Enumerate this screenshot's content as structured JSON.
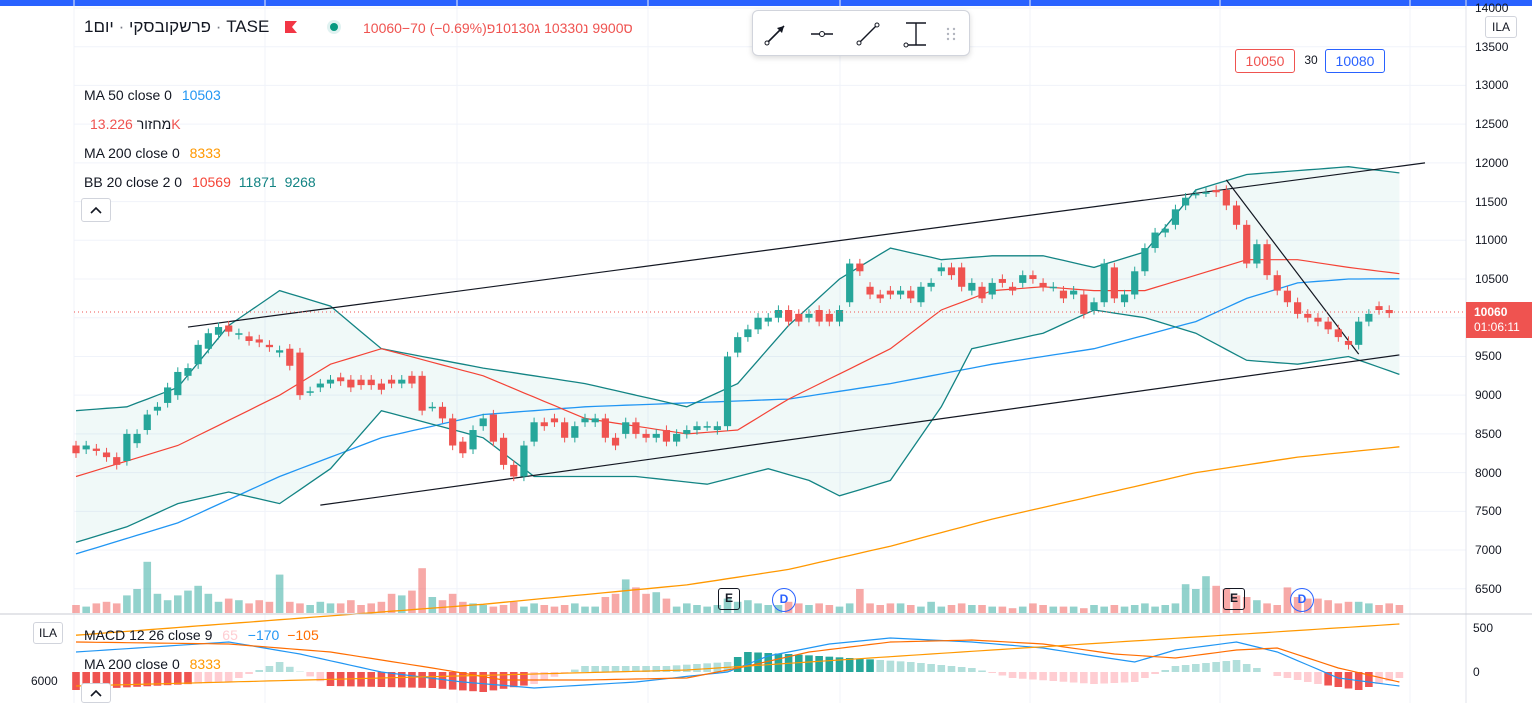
{
  "instrument": {
    "name": "פרשקובסקי",
    "separator": "·",
    "interval": "יום1",
    "exchange": "TASE",
    "ohlc_text": "10060−70 (−0.69%)ס9900 נ10330 ג10130פ"
  },
  "legends": {
    "ma50": {
      "label": "MA 50 close 0",
      "value": "10503"
    },
    "volume": {
      "label": "מחזור",
      "value": "13.226K"
    },
    "ma200": {
      "label": "MA 200 close 0",
      "value": "8333"
    },
    "bb": {
      "label": "BB 20 close 2 0",
      "v1": "10569",
      "v2": "11871",
      "v3": "9268"
    },
    "macd": {
      "label": "MACD 12 26 close 9",
      "v1": "65",
      "v2": "−170",
      "v3": "−105"
    },
    "ma200_lower": {
      "label": "MA 200 close 0",
      "value": "8333"
    }
  },
  "order_box": {
    "bid": "10050",
    "spread": "30",
    "ask": "10080"
  },
  "currency_badge": "ILA",
  "lower_currency_badge": "ILA",
  "lower_left_value": "6000",
  "last_price": {
    "price": "10060",
    "countdown": "01:06:11"
  },
  "events": [
    {
      "label": "E"
    },
    {
      "label": "D"
    },
    {
      "label": "E"
    },
    {
      "label": "D"
    }
  ],
  "toolbar": {
    "tools": [
      "arrow-tool-icon",
      "horizontal-ray-icon",
      "trend-line-icon",
      "price-range-icon",
      "drag-handle-icon"
    ]
  },
  "colors": {
    "up": "#26a69a",
    "down": "#ef5350",
    "ma50": "#2196f3",
    "ma200": "#ff9800",
    "bb_basis": "#f44336",
    "bb_band": "#138484"
  },
  "chart_data": {
    "type": "candlestick",
    "ylim": [
      6200,
      14000
    ],
    "y_ticks": [
      "14000",
      "13500",
      "13000",
      "12500",
      "12000",
      "11500",
      "11000",
      "10500",
      "10000",
      "9500",
      "9000",
      "8500",
      "8000",
      "7500",
      "7000",
      "6500"
    ],
    "candles": [
      [
        8350,
        8250
      ],
      [
        8300,
        8350
      ],
      [
        8310,
        8280
      ],
      [
        8260,
        8200
      ],
      [
        8200,
        8100
      ],
      [
        8150,
        8500
      ],
      [
        8380,
        8500
      ],
      [
        8550,
        8750
      ],
      [
        8800,
        8850
      ],
      [
        8900,
        9100
      ],
      [
        9000,
        9300
      ],
      [
        9250,
        9350
      ],
      [
        9400,
        9650
      ],
      [
        9600,
        9800
      ],
      [
        9780,
        9880
      ],
      [
        9900,
        9820
      ],
      [
        9780,
        9800
      ],
      [
        9760,
        9700
      ],
      [
        9720,
        9680
      ],
      [
        9650,
        9620
      ],
      [
        9550,
        9580
      ],
      [
        9600,
        9380
      ],
      [
        9550,
        9000
      ],
      [
        9050,
        9050
      ],
      [
        9100,
        9150
      ],
      [
        9150,
        9200
      ],
      [
        9230,
        9180
      ],
      [
        9200,
        9100
      ],
      [
        9200,
        9130
      ],
      [
        9200,
        9130
      ],
      [
        9150,
        9070
      ],
      [
        9200,
        9150
      ],
      [
        9150,
        9200
      ],
      [
        9250,
        9150
      ],
      [
        9250,
        8800
      ],
      [
        8850,
        8850
      ],
      [
        8850,
        8700
      ],
      [
        8700,
        8350
      ],
      [
        8400,
        8250
      ],
      [
        8300,
        8550
      ],
      [
        8600,
        8700
      ],
      [
        8750,
        8400
      ],
      [
        8450,
        8100
      ],
      [
        8100,
        7950
      ],
      [
        7950,
        8350
      ],
      [
        8400,
        8650
      ],
      [
        8650,
        8600
      ],
      [
        8700,
        8650
      ],
      [
        8650,
        8450
      ],
      [
        8450,
        8600
      ],
      [
        8650,
        8700
      ],
      [
        8650,
        8700
      ],
      [
        8700,
        8450
      ],
      [
        8450,
        8350
      ],
      [
        8500,
        8650
      ],
      [
        8650,
        8500
      ],
      [
        8500,
        8450
      ],
      [
        8450,
        8500
      ],
      [
        8550,
        8400
      ],
      [
        8400,
        8500
      ],
      [
        8500,
        8550
      ],
      [
        8550,
        8600
      ],
      [
        8600,
        8600
      ],
      [
        8550,
        8600
      ],
      [
        8600,
        9500
      ],
      [
        9550,
        9750
      ],
      [
        9750,
        9850
      ],
      [
        9850,
        10000
      ],
      [
        9950,
        10000
      ],
      [
        10000,
        10100
      ],
      [
        10100,
        9950
      ],
      [
        10050,
        9950
      ],
      [
        10000,
        10050
      ],
      [
        10100,
        9950
      ],
      [
        10050,
        9950
      ],
      [
        9950,
        10100
      ],
      [
        10200,
        10700
      ],
      [
        10700,
        10600
      ],
      [
        10400,
        10300
      ],
      [
        10300,
        10250
      ],
      [
        10350,
        10300
      ],
      [
        10300,
        10350
      ],
      [
        10350,
        10250
      ],
      [
        10200,
        10400
      ],
      [
        10400,
        10450
      ],
      [
        10600,
        10650
      ],
      [
        10650,
        10550
      ],
      [
        10650,
        10400
      ],
      [
        10350,
        10450
      ],
      [
        10400,
        10250
      ],
      [
        10300,
        10450
      ],
      [
        10500,
        10450
      ],
      [
        10400,
        10350
      ],
      [
        10450,
        10550
      ],
      [
        10550,
        10500
      ],
      [
        10450,
        10400
      ],
      [
        10400,
        10400
      ],
      [
        10350,
        10250
      ],
      [
        10300,
        10350
      ],
      [
        10300,
        10050
      ],
      [
        10100,
        10200
      ],
      [
        10200,
        10700
      ],
      [
        10650,
        10250
      ],
      [
        10200,
        10300
      ],
      [
        10300,
        10600
      ],
      [
        10600,
        10900
      ],
      [
        10900,
        11100
      ],
      [
        11100,
        11150
      ],
      [
        11200,
        11400
      ],
      [
        11450,
        11550
      ],
      [
        11600,
        11600
      ],
      [
        11620,
        11620
      ],
      [
        11650,
        11620
      ],
      [
        11650,
        11450
      ],
      [
        11450,
        11200
      ],
      [
        11200,
        10700
      ],
      [
        10700,
        10950
      ],
      [
        10950,
        10550
      ],
      [
        10550,
        10350
      ],
      [
        10350,
        10200
      ],
      [
        10200,
        10050
      ],
      [
        10050,
        10000
      ],
      [
        10000,
        9950
      ],
      [
        9950,
        9850
      ],
      [
        9850,
        9750
      ],
      [
        9700,
        9650
      ],
      [
        9650,
        9950
      ],
      [
        9950,
        10050
      ],
      [
        10150,
        10100
      ],
      [
        10100,
        10060
      ]
    ],
    "ma50": [
      [
        0,
        6950
      ],
      [
        5,
        7150
      ],
      [
        10,
        7350
      ],
      [
        20,
        7950
      ],
      [
        30,
        8450
      ],
      [
        40,
        8750
      ],
      [
        50,
        8850
      ],
      [
        60,
        8900
      ],
      [
        70,
        8950
      ],
      [
        80,
        9150
      ],
      [
        90,
        9400
      ],
      [
        100,
        9600
      ],
      [
        110,
        9950
      ],
      [
        115,
        10250
      ],
      [
        120,
        10450
      ],
      [
        125,
        10500
      ],
      [
        130,
        10503
      ]
    ],
    "ma200": [
      [
        0,
        5900
      ],
      [
        20,
        6100
      ],
      [
        40,
        6300
      ],
      [
        60,
        6550
      ],
      [
        70,
        6750
      ],
      [
        80,
        7050
      ],
      [
        90,
        7400
      ],
      [
        100,
        7700
      ],
      [
        110,
        8000
      ],
      [
        120,
        8200
      ],
      [
        130,
        8333
      ]
    ],
    "bb_upper": [
      [
        0,
        8800
      ],
      [
        5,
        8850
      ],
      [
        10,
        9100
      ],
      [
        15,
        9900
      ],
      [
        20,
        10350
      ],
      [
        25,
        10150
      ],
      [
        30,
        9600
      ],
      [
        40,
        9350
      ],
      [
        50,
        9150
      ],
      [
        60,
        8850
      ],
      [
        65,
        9150
      ],
      [
        70,
        9900
      ],
      [
        75,
        10500
      ],
      [
        80,
        10900
      ],
      [
        85,
        10750
      ],
      [
        90,
        10800
      ],
      [
        95,
        10800
      ],
      [
        100,
        10650
      ],
      [
        105,
        10850
      ],
      [
        110,
        11650
      ],
      [
        115,
        11850
      ],
      [
        125,
        11950
      ],
      [
        130,
        11871
      ]
    ],
    "bb_basis": [
      [
        0,
        7950
      ],
      [
        10,
        8350
      ],
      [
        20,
        9000
      ],
      [
        25,
        9400
      ],
      [
        30,
        9600
      ],
      [
        40,
        9250
      ],
      [
        50,
        8700
      ],
      [
        60,
        8500
      ],
      [
        65,
        8550
      ],
      [
        70,
        8950
      ],
      [
        80,
        9600
      ],
      [
        85,
        10100
      ],
      [
        90,
        10350
      ],
      [
        95,
        10400
      ],
      [
        100,
        10350
      ],
      [
        105,
        10350
      ],
      [
        110,
        10550
      ],
      [
        115,
        10750
      ],
      [
        120,
        10750
      ],
      [
        125,
        10650
      ],
      [
        130,
        10569
      ]
    ],
    "bb_lower": [
      [
        0,
        7100
      ],
      [
        5,
        7300
      ],
      [
        10,
        7600
      ],
      [
        15,
        7750
      ],
      [
        20,
        7600
      ],
      [
        25,
        8050
      ],
      [
        30,
        8800
      ],
      [
        40,
        8450
      ],
      [
        45,
        7950
      ],
      [
        55,
        7950
      ],
      [
        62,
        7850
      ],
      [
        68,
        8050
      ],
      [
        72,
        7900
      ],
      [
        75,
        7700
      ],
      [
        80,
        7900
      ],
      [
        85,
        8850
      ],
      [
        88,
        9600
      ],
      [
        95,
        9800
      ],
      [
        100,
        10100
      ],
      [
        105,
        10000
      ],
      [
        110,
        9800
      ],
      [
        115,
        9450
      ],
      [
        120,
        9400
      ],
      [
        125,
        9500
      ],
      [
        130,
        9268
      ]
    ],
    "volume": [
      0.05,
      0.04,
      0.06,
      0.07,
      0.06,
      0.11,
      0.15,
      0.32,
      0.12,
      0.08,
      0.11,
      0.14,
      0.17,
      0.12,
      0.07,
      0.09,
      0.08,
      0.06,
      0.08,
      0.07,
      0.24,
      0.07,
      0.06,
      0.05,
      0.07,
      0.06,
      0.06,
      0.08,
      0.05,
      0.06,
      0.07,
      0.12,
      0.11,
      0.14,
      0.28,
      0.1,
      0.08,
      0.12,
      0.07,
      0.06,
      0.05,
      0.04,
      0.05,
      0.07,
      0.04,
      0.06,
      0.05,
      0.04,
      0.05,
      0.06,
      0.04,
      0.04,
      0.1,
      0.12,
      0.21,
      0.16,
      0.12,
      0.13,
      0.09,
      0.04,
      0.06,
      0.05,
      0.04,
      0.05,
      0.09,
      0.07,
      0.08,
      0.06,
      0.05,
      0.05,
      0.07,
      0.06,
      0.05,
      0.06,
      0.05,
      0.04,
      0.06,
      0.15,
      0.06,
      0.05,
      0.06,
      0.06,
      0.05,
      0.04,
      0.07,
      0.04,
      0.05,
      0.06,
      0.05,
      0.05,
      0.04,
      0.04,
      0.03,
      0.04,
      0.06,
      0.05,
      0.04,
      0.04,
      0.04,
      0.03,
      0.05,
      0.04,
      0.05,
      0.04,
      0.05,
      0.06,
      0.04,
      0.05,
      0.06,
      0.18,
      0.15,
      0.23,
      0.17,
      0.15,
      0.11,
      0.1,
      0.08,
      0.06,
      0.05,
      0.16,
      0.1,
      0.09,
      0.09,
      0.08,
      0.06,
      0.07,
      0.07,
      0.06,
      0.05,
      0.06,
      0.05
    ]
  }
}
